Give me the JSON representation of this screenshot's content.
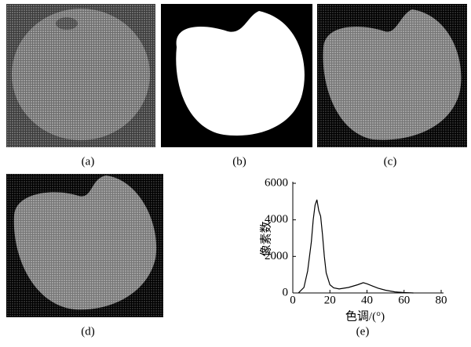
{
  "panel_labels": [
    "(a)",
    "(b)",
    "(c)",
    "(d)",
    "(e)"
  ],
  "chart_data": {
    "type": "line",
    "xlabel": "色调/(°)",
    "ylabel": "像素数",
    "xlim": [
      0,
      80
    ],
    "xticks": [
      0,
      20,
      40,
      60,
      80
    ],
    "ylim": [
      0,
      6000
    ],
    "yticks": [
      0,
      2000,
      4000,
      6000
    ],
    "color": "#000000",
    "x": [
      3,
      6,
      8,
      10,
      11,
      12,
      13,
      14,
      15,
      16,
      17,
      18,
      20,
      22,
      25,
      30,
      35,
      38,
      40,
      43,
      46,
      50,
      55,
      60,
      65
    ],
    "values": [
      0,
      300,
      1200,
      2800,
      4000,
      4800,
      5100,
      4500,
      4200,
      3200,
      2000,
      1100,
      450,
      280,
      220,
      300,
      450,
      560,
      500,
      380,
      260,
      150,
      60,
      20,
      0
    ]
  }
}
